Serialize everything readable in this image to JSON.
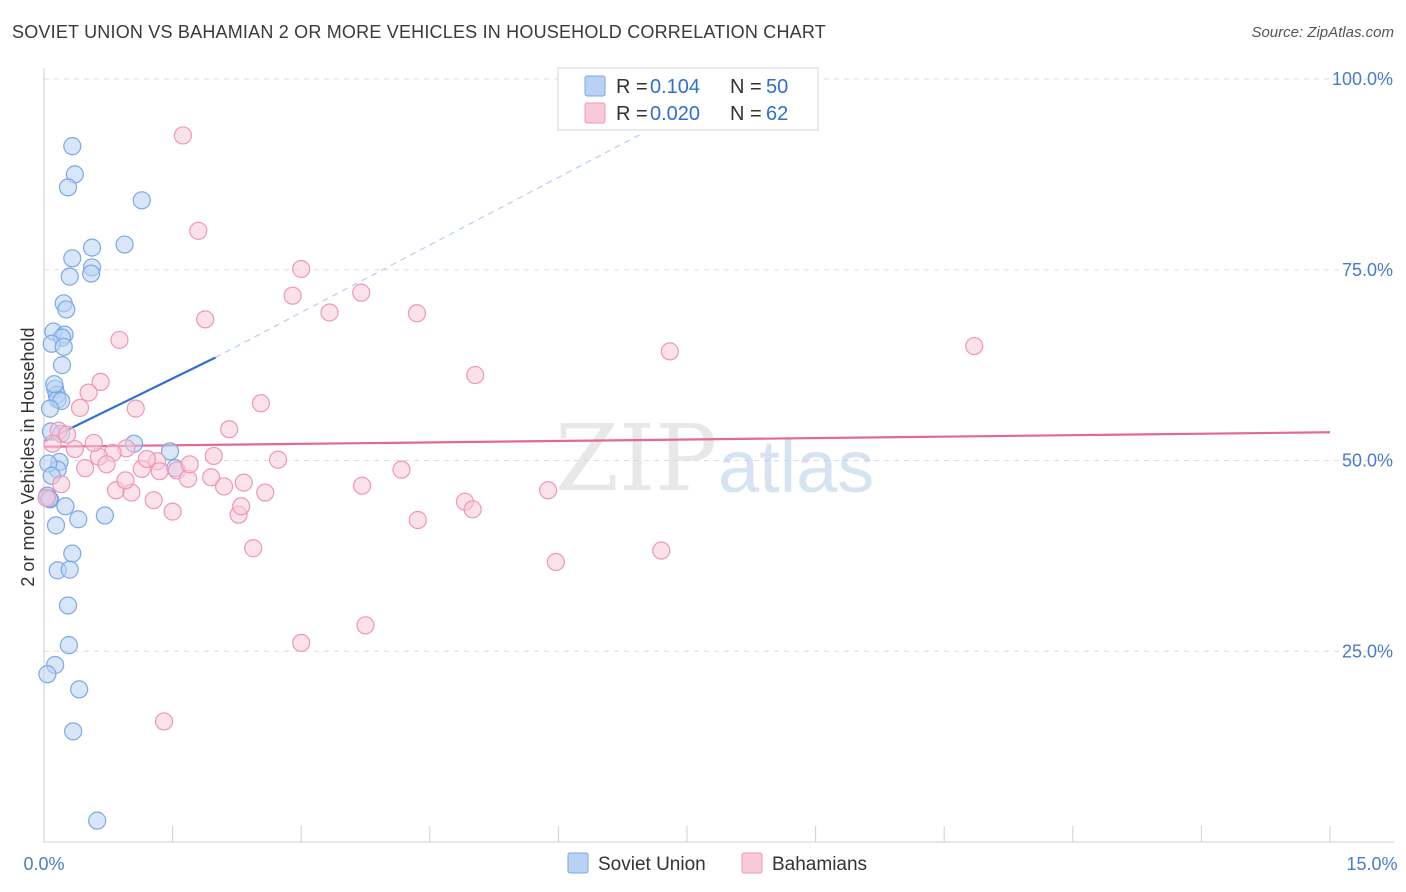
{
  "title": "SOVIET UNION VS BAHAMIAN 2 OR MORE VEHICLES IN HOUSEHOLD CORRELATION CHART",
  "source": "Source: ZipAtlas.com",
  "watermark": {
    "zip": "ZIP",
    "atlas": "atlas"
  },
  "colors": {
    "soviet": "#7aa9e6",
    "soviet_fill": "#b9d2f3",
    "soviet_line": "#2f6fcf",
    "bahamian": "#ef97b4",
    "bahamian_fill": "#f8c9d8",
    "bahamian_line": "#e06a93",
    "tick": "#4a7cc9",
    "grid": "#dddddd"
  },
  "legend": {
    "soviet": {
      "r_label": "R = ",
      "r_value": "0.104",
      "n_label": "N = ",
      "n_value": "50"
    },
    "bahamian": {
      "r_label": "R = ",
      "r_value": "0.020",
      "n_label": "N = ",
      "n_value": "62"
    }
  },
  "chart_data": {
    "type": "scatter",
    "title": "SOVIET UNION VS BAHAMIAN 2 OR MORE VEHICLES IN HOUSEHOLD CORRELATION CHART",
    "xlabel": "",
    "ylabel": "2 or more Vehicles in Household",
    "xlim": [
      0,
      15
    ],
    "ylim": [
      0,
      100
    ],
    "x_tick_labels": [
      "0.0%",
      "15.0%"
    ],
    "y_ticks": [
      25,
      50,
      75,
      100
    ],
    "y_tick_labels": [
      "25.0%",
      "50.0%",
      "75.0%",
      "100.0%"
    ],
    "grid": true,
    "legend_position": "top-center",
    "series": [
      {
        "name": "Soviet Union",
        "color": "#7aa9e6",
        "trend": {
          "x": [
            0,
            2.0
          ],
          "y": [
            52.5,
            63.5
          ],
          "extended_to": [
            7.0,
            93.0
          ]
        },
        "points": [
          {
            "x": 0.33,
            "y": 91.2
          },
          {
            "x": 0.36,
            "y": 87.5
          },
          {
            "x": 0.28,
            "y": 85.8
          },
          {
            "x": 1.14,
            "y": 84.1
          },
          {
            "x": 0.56,
            "y": 77.9
          },
          {
            "x": 0.94,
            "y": 78.3
          },
          {
            "x": 0.33,
            "y": 76.5
          },
          {
            "x": 0.56,
            "y": 75.3
          },
          {
            "x": 0.55,
            "y": 74.5
          },
          {
            "x": 0.3,
            "y": 74.1
          },
          {
            "x": 0.23,
            "y": 70.6
          },
          {
            "x": 0.26,
            "y": 69.8
          },
          {
            "x": 0.11,
            "y": 66.9
          },
          {
            "x": 0.24,
            "y": 66.5
          },
          {
            "x": 0.21,
            "y": 66.1
          },
          {
            "x": 0.09,
            "y": 65.3
          },
          {
            "x": 0.23,
            "y": 64.9
          },
          {
            "x": 0.21,
            "y": 62.5
          },
          {
            "x": 0.13,
            "y": 59.4
          },
          {
            "x": 0.15,
            "y": 58.6
          },
          {
            "x": 0.16,
            "y": 58.0
          },
          {
            "x": 0.2,
            "y": 57.8
          },
          {
            "x": 0.07,
            "y": 56.8
          },
          {
            "x": 0.08,
            "y": 53.8
          },
          {
            "x": 1.05,
            "y": 52.2
          },
          {
            "x": 0.18,
            "y": 49.8
          },
          {
            "x": 0.16,
            "y": 48.8
          },
          {
            "x": 1.47,
            "y": 51.2
          },
          {
            "x": 1.53,
            "y": 49.0
          },
          {
            "x": 0.04,
            "y": 45.4
          },
          {
            "x": 0.07,
            "y": 44.9
          },
          {
            "x": 0.71,
            "y": 42.8
          },
          {
            "x": 0.4,
            "y": 42.3
          },
          {
            "x": 0.14,
            "y": 41.5
          },
          {
            "x": 0.33,
            "y": 37.8
          },
          {
            "x": 0.16,
            "y": 35.6
          },
          {
            "x": 0.3,
            "y": 35.7
          },
          {
            "x": 0.28,
            "y": 31.0
          },
          {
            "x": 0.29,
            "y": 25.8
          },
          {
            "x": 0.13,
            "y": 23.2
          },
          {
            "x": 0.04,
            "y": 22.0
          },
          {
            "x": 0.41,
            "y": 20.0
          },
          {
            "x": 0.34,
            "y": 14.5
          },
          {
            "x": 0.62,
            "y": 2.8
          },
          {
            "x": 0.06,
            "y": 45.0
          },
          {
            "x": 0.05,
            "y": 49.6
          },
          {
            "x": 0.12,
            "y": 60.0
          },
          {
            "x": 0.2,
            "y": 53.5
          },
          {
            "x": 0.09,
            "y": 48.0
          },
          {
            "x": 0.25,
            "y": 44.0
          }
        ]
      },
      {
        "name": "Bahamians",
        "color": "#ef97b4",
        "trend": {
          "x": [
            0,
            15
          ],
          "y": [
            51.8,
            53.7
          ]
        },
        "points": [
          {
            "x": 1.62,
            "y": 92.6
          },
          {
            "x": 1.8,
            "y": 80.1
          },
          {
            "x": 3.0,
            "y": 75.1
          },
          {
            "x": 2.9,
            "y": 71.6
          },
          {
            "x": 3.7,
            "y": 72.0
          },
          {
            "x": 3.33,
            "y": 69.4
          },
          {
            "x": 4.35,
            "y": 69.3
          },
          {
            "x": 1.88,
            "y": 68.5
          },
          {
            "x": 0.88,
            "y": 65.8
          },
          {
            "x": 7.3,
            "y": 64.3
          },
          {
            "x": 10.85,
            "y": 65.0
          },
          {
            "x": 5.03,
            "y": 61.2
          },
          {
            "x": 0.66,
            "y": 60.3
          },
          {
            "x": 0.52,
            "y": 58.9
          },
          {
            "x": 2.53,
            "y": 57.5
          },
          {
            "x": 1.07,
            "y": 56.8
          },
          {
            "x": 0.42,
            "y": 56.9
          },
          {
            "x": 0.17,
            "y": 53.9
          },
          {
            "x": 0.27,
            "y": 53.4
          },
          {
            "x": 2.16,
            "y": 54.1
          },
          {
            "x": 0.36,
            "y": 51.5
          },
          {
            "x": 0.96,
            "y": 51.6
          },
          {
            "x": 0.8,
            "y": 51.0
          },
          {
            "x": 0.64,
            "y": 50.5
          },
          {
            "x": 1.32,
            "y": 49.9
          },
          {
            "x": 1.98,
            "y": 50.6
          },
          {
            "x": 2.73,
            "y": 50.1
          },
          {
            "x": 0.73,
            "y": 49.5
          },
          {
            "x": 0.48,
            "y": 49.0
          },
          {
            "x": 1.14,
            "y": 48.9
          },
          {
            "x": 1.35,
            "y": 48.6
          },
          {
            "x": 1.55,
            "y": 48.7
          },
          {
            "x": 1.68,
            "y": 47.6
          },
          {
            "x": 1.95,
            "y": 47.8
          },
          {
            "x": 4.17,
            "y": 48.8
          },
          {
            "x": 2.33,
            "y": 47.1
          },
          {
            "x": 2.1,
            "y": 46.6
          },
          {
            "x": 3.71,
            "y": 46.7
          },
          {
            "x": 0.84,
            "y": 46.1
          },
          {
            "x": 1.02,
            "y": 45.8
          },
          {
            "x": 2.58,
            "y": 45.8
          },
          {
            "x": 1.28,
            "y": 44.8
          },
          {
            "x": 4.91,
            "y": 44.6
          },
          {
            "x": 5.0,
            "y": 43.6
          },
          {
            "x": 1.5,
            "y": 43.3
          },
          {
            "x": 2.27,
            "y": 42.9
          },
          {
            "x": 4.36,
            "y": 42.2
          },
          {
            "x": 5.88,
            "y": 46.1
          },
          {
            "x": 7.2,
            "y": 38.2
          },
          {
            "x": 2.44,
            "y": 38.5
          },
          {
            "x": 5.97,
            "y": 36.7
          },
          {
            "x": 3.75,
            "y": 28.4
          },
          {
            "x": 3.0,
            "y": 26.1
          },
          {
            "x": 1.4,
            "y": 15.8
          },
          {
            "x": 0.03,
            "y": 45.1
          },
          {
            "x": 0.1,
            "y": 52.2
          },
          {
            "x": 0.2,
            "y": 46.9
          },
          {
            "x": 0.58,
            "y": 52.3
          },
          {
            "x": 1.2,
            "y": 50.2
          },
          {
            "x": 1.7,
            "y": 49.5
          },
          {
            "x": 2.3,
            "y": 44.0
          },
          {
            "x": 0.95,
            "y": 47.4
          }
        ]
      }
    ]
  },
  "bottom_legend": [
    "Soviet Union",
    "Bahamians"
  ]
}
